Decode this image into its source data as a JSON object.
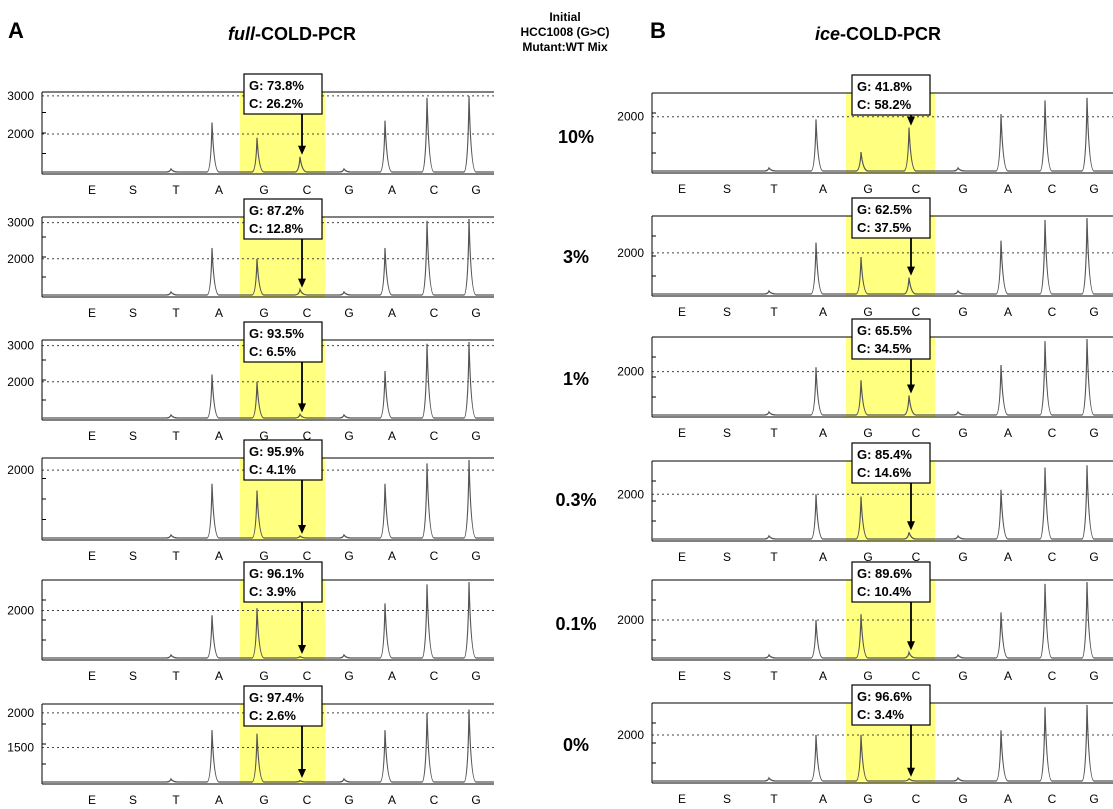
{
  "panels": {
    "A": {
      "letter": "A",
      "title_italic": "full",
      "title_rest": "-COLD-PCR"
    },
    "B": {
      "letter": "B",
      "title_italic": "ice",
      "title_rest": "-COLD-PCR"
    }
  },
  "middle": {
    "header_lines": [
      "Initial",
      "HCC1008 (G>C)",
      "Mutant:WT Mix"
    ],
    "rows": [
      "10%",
      "3%",
      "1%",
      "0.3%",
      "0.1%",
      "0%"
    ]
  },
  "bases": [
    "E",
    "S",
    "T",
    "A",
    "G",
    "C",
    "G",
    "A",
    "C",
    "G"
  ],
  "colors": {
    "highlight": "#ffff80",
    "trace": "#555555",
    "frame": "#000000",
    "grid": "#444444"
  },
  "chart_data": [
    {
      "type": "line",
      "panel": "A",
      "mix": "10%",
      "yticks": [
        3000,
        2000
      ],
      "ylim": [
        1000,
        3050
      ],
      "G": "73.8%",
      "C": "26.2%",
      "peaks": [
        2300,
        1900,
        1400,
        2350,
        2950,
        3000
      ]
    },
    {
      "type": "line",
      "panel": "A",
      "mix": "3%",
      "yticks": [
        3000,
        2000
      ],
      "ylim": [
        1000,
        3100
      ],
      "G": "87.2%",
      "C": "12.8%",
      "peaks": [
        2300,
        2000,
        1150,
        2300,
        3050,
        3100
      ]
    },
    {
      "type": "line",
      "panel": "A",
      "mix": "1%",
      "yticks": [
        3000,
        2000
      ],
      "ylim": [
        1000,
        3100
      ],
      "G": "93.5%",
      "C": "6.5%",
      "peaks": [
        2200,
        2000,
        1100,
        2300,
        3050,
        3100
      ]
    },
    {
      "type": "line",
      "panel": "A",
      "mix": "0.3%",
      "yticks": [
        2000
      ],
      "ylim": [
        1000,
        2150
      ],
      "G": "95.9%",
      "C": "4.1%",
      "peaks": [
        1800,
        1700,
        1030,
        1800,
        2100,
        2150
      ]
    },
    {
      "type": "line",
      "panel": "A",
      "mix": "0.1%",
      "yticks": [
        2000
      ],
      "ylim": [
        1000,
        2600
      ],
      "G": "96.1%",
      "C": "3.9%",
      "peaks": [
        1900,
        2050,
        1030,
        2150,
        2550,
        2600
      ]
    },
    {
      "type": "line",
      "panel": "A",
      "mix": "0%",
      "yticks": [
        2000,
        1500
      ],
      "ylim": [
        1000,
        2100
      ],
      "G": "97.4%",
      "C": "2.6%",
      "peaks": [
        1750,
        1700,
        1020,
        1750,
        2000,
        2050
      ]
    },
    {
      "type": "line",
      "panel": "B",
      "mix": "10%",
      "yticks": [
        2000
      ],
      "ylim": [
        1000,
        2400
      ],
      "G": "41.8%",
      "C": "58.2%",
      "peaks": [
        1950,
        1350,
        1800,
        2050,
        2300,
        2350
      ]
    },
    {
      "type": "line",
      "panel": "B",
      "mix": "3%",
      "yticks": [
        2000
      ],
      "ylim": [
        1000,
        2850
      ],
      "G": "62.5%",
      "C": "37.5%",
      "peaks": [
        2250,
        1900,
        1400,
        2300,
        2800,
        2850
      ]
    },
    {
      "type": "line",
      "panel": "B",
      "mix": "1%",
      "yticks": [
        2000
      ],
      "ylim": [
        1000,
        2750
      ],
      "G": "65.5%",
      "C": "34.5%",
      "peaks": [
        2100,
        1800,
        1450,
        2150,
        2700,
        2750
      ]
    },
    {
      "type": "line",
      "panel": "B",
      "mix": "0.3%",
      "yticks": [
        2000
      ],
      "ylim": [
        1000,
        2700
      ],
      "G": "85.4%",
      "C": "14.6%",
      "peaks": [
        2000,
        1950,
        1150,
        2100,
        2600,
        2650
      ]
    },
    {
      "type": "line",
      "panel": "B",
      "mix": "0.1%",
      "yticks": [
        2000
      ],
      "ylim": [
        1000,
        3000
      ],
      "G": "89.6%",
      "C": "10.4%",
      "peaks": [
        2000,
        2150,
        1150,
        2200,
        2950,
        3000
      ]
    },
    {
      "type": "line",
      "panel": "B",
      "mix": "0%",
      "yticks": [
        2000
      ],
      "ylim": [
        1000,
        2650
      ],
      "G": "96.6%",
      "C": "3.4%",
      "peaks": [
        2000,
        2000,
        1050,
        2100,
        2600,
        2650
      ]
    }
  ]
}
